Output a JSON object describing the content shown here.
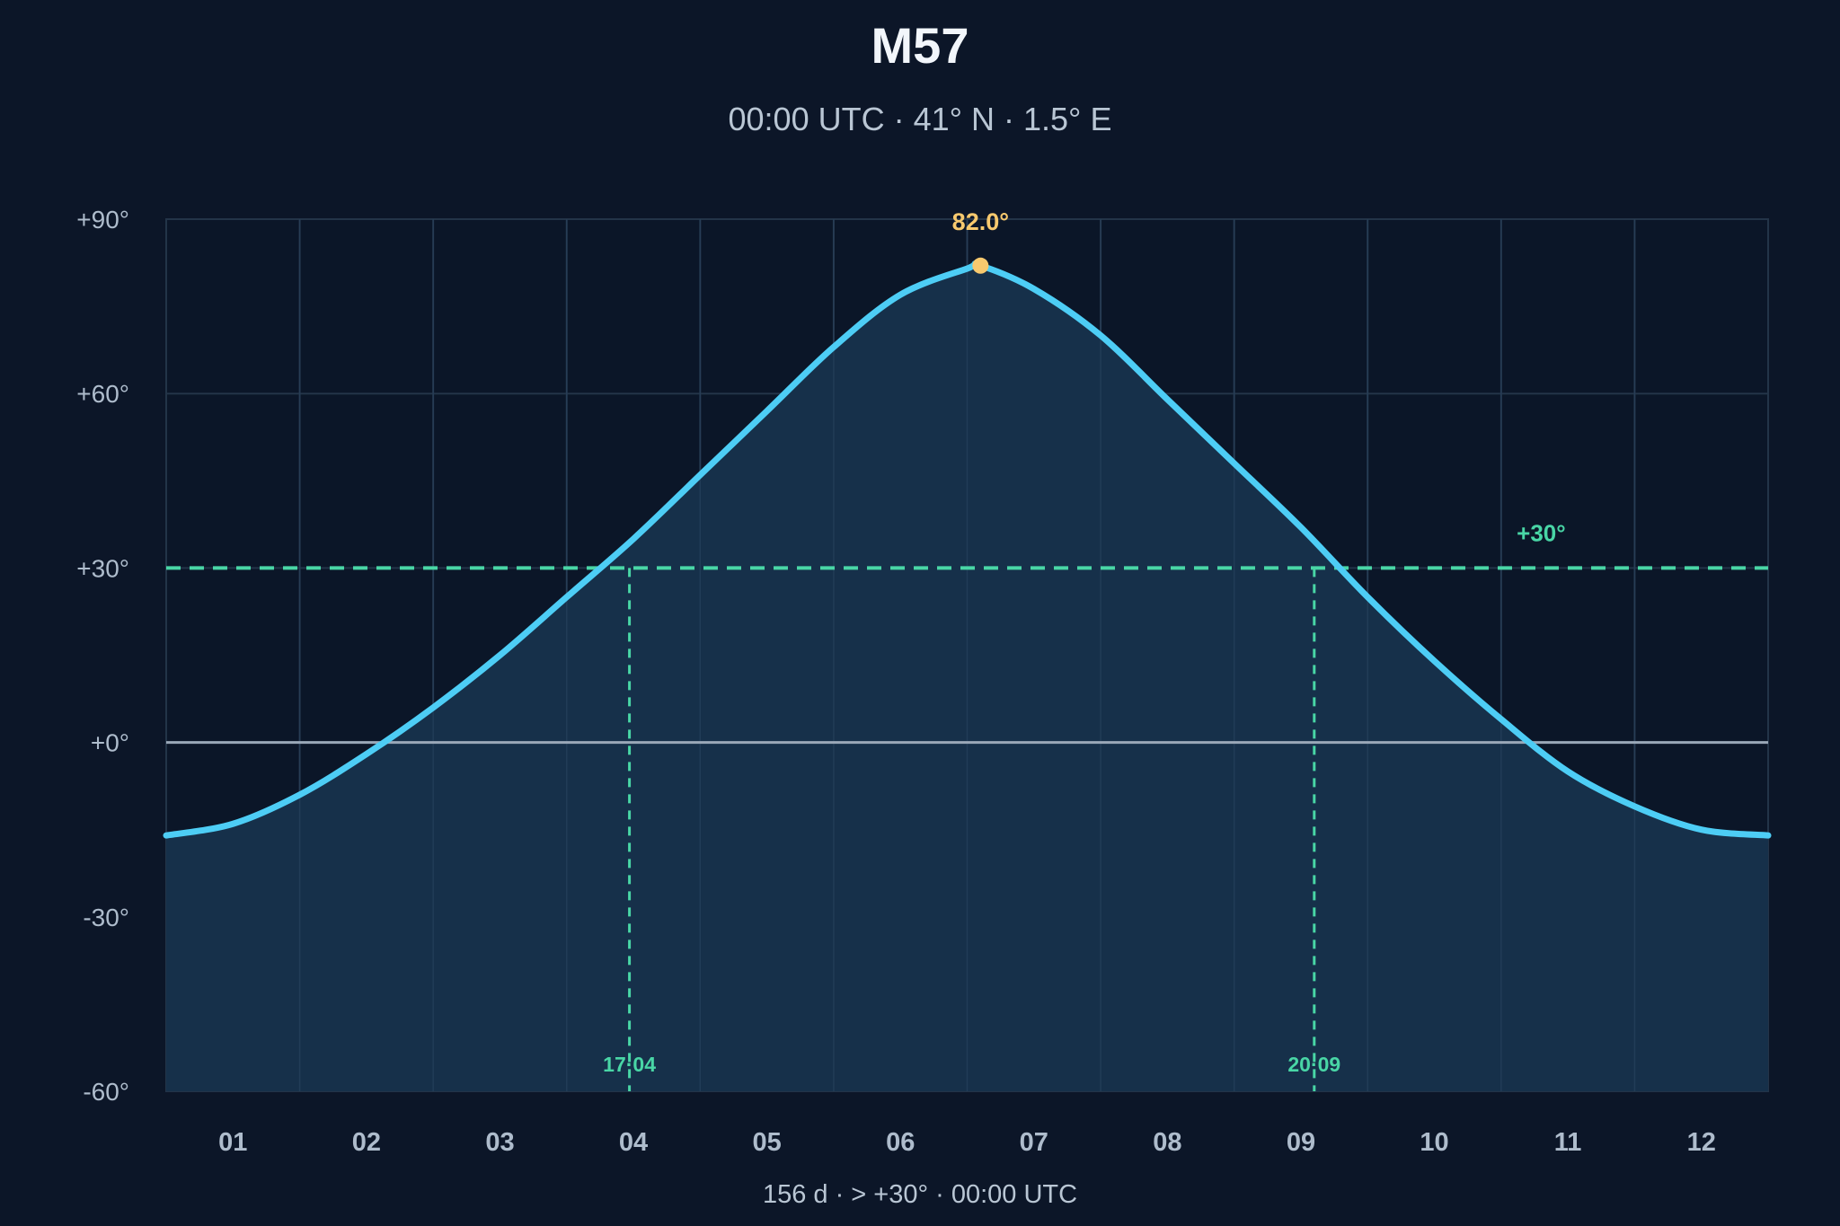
{
  "chart_data": {
    "type": "line",
    "title": "M57",
    "subtitle": "00:00 UTC · 41° N · 1.5° E",
    "footer": "156 d  ·  > +30°  ·  00:00 UTC",
    "y_ticks": [
      "+90°",
      "+60°",
      "+30°",
      "+0°",
      "-30°",
      "-60°"
    ],
    "ylim": [
      -60,
      90
    ],
    "x_ticks": [
      "01",
      "02",
      "03",
      "04",
      "05",
      "06",
      "07",
      "08",
      "09",
      "10",
      "11",
      "12"
    ],
    "xlim": [
      0.5,
      12.5
    ],
    "series": [
      {
        "x": [
          0.5,
          1.0,
          1.5,
          2.0,
          2.5,
          3.0,
          3.5,
          4.0,
          4.5,
          5.0,
          5.5,
          6.0,
          6.5,
          6.6,
          7.0,
          7.5,
          8.0,
          8.5,
          9.0,
          9.5,
          10.0,
          10.5,
          11.0,
          11.5,
          12.0,
          12.5
        ],
        "values": [
          -16,
          -14,
          -9,
          -2,
          6,
          15,
          25,
          35,
          46,
          57,
          68,
          77,
          81.5,
          82,
          78,
          70,
          59,
          48,
          37,
          25,
          14,
          4,
          -5,
          -11,
          -15,
          -16
        ]
      }
    ],
    "peak": {
      "x": 6.6,
      "value": 82.0,
      "label": "82.0°"
    },
    "threshold": {
      "value": 30,
      "label": "+30°"
    },
    "zero_line": 0,
    "crossings": [
      {
        "x": 3.97,
        "label": "17·04"
      },
      {
        "x": 9.1,
        "label": "20·09"
      }
    ],
    "grid": true,
    "colors": {
      "background": "#0c1628",
      "plot_bg": "#0b1628",
      "area": "#16304a",
      "curve": "#4dcdf5",
      "threshold": "#49d6a6",
      "peak": "#f7c96e",
      "zero": "#9aa8b8",
      "grid": "#233448"
    }
  }
}
